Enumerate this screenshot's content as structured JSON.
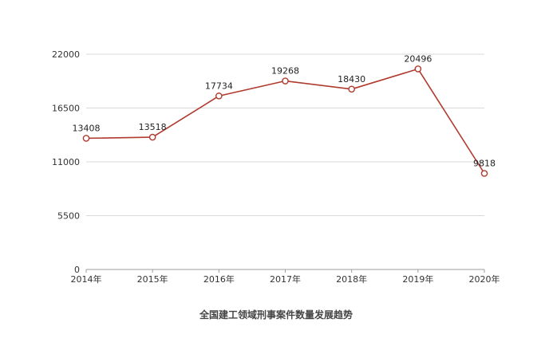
{
  "chart_data": {
    "type": "line",
    "title": "全国建工领域刑事案件数量发展趋势",
    "xlabel": "",
    "ylabel": "",
    "categories": [
      "2014年",
      "2015年",
      "2016年",
      "2017年",
      "2018年",
      "2019年",
      "2020年"
    ],
    "series": [
      {
        "values": [
          13408,
          13518,
          17734,
          19268,
          18430,
          20496,
          9818
        ]
      }
    ],
    "ylim": [
      0,
      22000
    ],
    "yticks": [
      "0",
      "5500",
      "11000",
      "16500",
      "22000"
    ],
    "grid": true,
    "legend": "none",
    "line_color": "#b03a2e"
  }
}
